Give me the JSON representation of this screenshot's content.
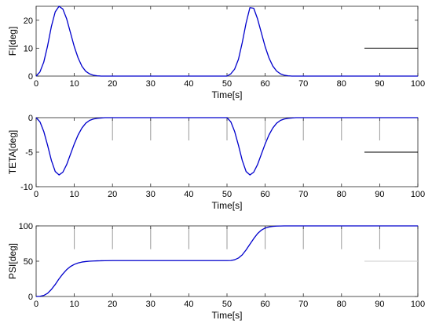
{
  "chart_data": [
    {
      "type": "line",
      "xlabel": "Time[s]",
      "ylabel": "FI[deg]",
      "xlim": [
        0,
        100
      ],
      "ylim": [
        0,
        25
      ],
      "xticks": [
        0,
        10,
        20,
        30,
        40,
        50,
        60,
        70,
        80,
        90,
        100
      ],
      "yticks": [
        0,
        10,
        20
      ],
      "grid": false,
      "series": [
        {
          "color": "#0000cc",
          "x": [
            0,
            1,
            2,
            3,
            4,
            5,
            6,
            7,
            8,
            9,
            10,
            11,
            12,
            13,
            14,
            15,
            16,
            17,
            18,
            20,
            25,
            30,
            35,
            40,
            45,
            48,
            49,
            50,
            51,
            52,
            53,
            54,
            55,
            56,
            57,
            58,
            59,
            60,
            61,
            62,
            63,
            64,
            65,
            66,
            67,
            68,
            70,
            80,
            90,
            100
          ],
          "y": [
            0,
            1.5,
            5.0,
            10.8,
            17.8,
            23.0,
            25.0,
            24.0,
            20.5,
            15.5,
            10.5,
            6.5,
            3.5,
            1.7,
            0.8,
            0.3,
            0.1,
            0,
            0,
            0,
            0,
            0,
            0,
            0,
            0,
            0,
            0,
            0,
            0.8,
            2.5,
            6.0,
            12.0,
            19.0,
            24.5,
            24.3,
            20.5,
            15.5,
            10.5,
            6.5,
            3.6,
            1.8,
            0.8,
            0.3,
            0.1,
            0,
            0,
            0,
            0,
            0,
            0
          ]
        },
        {
          "color": "#000000",
          "x": [
            86,
            100
          ],
          "y": [
            10,
            10
          ]
        }
      ]
    },
    {
      "type": "line",
      "xlabel": "Time[s]",
      "ylabel": "TETA[deg]",
      "xlim": [
        0,
        100
      ],
      "ylim": [
        -10,
        0
      ],
      "xticks": [
        0,
        10,
        20,
        30,
        40,
        50,
        60,
        70,
        80,
        90,
        100
      ],
      "yticks": [
        -10,
        -5,
        0
      ],
      "grid": false,
      "series": [
        {
          "color": "#0000cc",
          "x": [
            0,
            1,
            2,
            3,
            4,
            5,
            6,
            7,
            8,
            9,
            10,
            11,
            12,
            13,
            14,
            15,
            16,
            18,
            20,
            30,
            40,
            49,
            50,
            51,
            52,
            53,
            54,
            55,
            56,
            57,
            58,
            59,
            60,
            61,
            62,
            63,
            64,
            65,
            66,
            68,
            70,
            80,
            90,
            100
          ],
          "y": [
            0,
            -0.6,
            -2.0,
            -4.0,
            -6.2,
            -7.8,
            -8.3,
            -7.9,
            -6.8,
            -5.3,
            -3.8,
            -2.5,
            -1.5,
            -0.8,
            -0.4,
            -0.2,
            -0.1,
            0,
            0,
            0,
            0,
            0,
            0,
            -0.6,
            -2.0,
            -4.0,
            -6.2,
            -7.8,
            -8.3,
            -7.9,
            -6.8,
            -5.3,
            -3.8,
            -2.5,
            -1.5,
            -0.8,
            -0.4,
            -0.2,
            -0.1,
            0,
            0,
            0,
            0,
            0
          ]
        },
        {
          "color": "#000000",
          "x": [
            86,
            100
          ],
          "y": [
            -5,
            -5
          ]
        }
      ]
    },
    {
      "type": "line",
      "xlabel": "Time[s]",
      "ylabel": "PSI[deg]",
      "xlim": [
        0,
        100
      ],
      "ylim": [
        0,
        100
      ],
      "xticks": [
        0,
        10,
        20,
        30,
        40,
        50,
        60,
        70,
        80,
        90,
        100
      ],
      "yticks": [
        0,
        50,
        100
      ],
      "grid": false,
      "series": [
        {
          "color": "#0000cc",
          "x": [
            0,
            1,
            2,
            3,
            4,
            5,
            6,
            7,
            8,
            9,
            10,
            11,
            12,
            13,
            14,
            15,
            16,
            17,
            18,
            20,
            25,
            30,
            35,
            40,
            45,
            50,
            51,
            52,
            53,
            54,
            55,
            56,
            57,
            58,
            59,
            60,
            61,
            62,
            63,
            64,
            65,
            66,
            68,
            70,
            80,
            90,
            100
          ],
          "y": [
            0,
            0.3,
            1.5,
            4.5,
            10,
            17,
            25,
            32,
            38,
            42.5,
            45.5,
            47.5,
            48.8,
            49.5,
            50,
            50.3,
            50.5,
            50.6,
            50.7,
            50.8,
            50.8,
            50.8,
            50.8,
            50.8,
            50.8,
            50.8,
            51,
            52,
            54.5,
            59,
            66,
            74,
            82,
            89,
            94,
            97,
            98.5,
            99.3,
            99.7,
            99.9,
            100,
            100,
            100,
            100,
            100,
            100,
            100
          ]
        },
        {
          "color": "#cccccc",
          "x": [
            86,
            100
          ],
          "y": [
            50,
            50
          ]
        }
      ]
    }
  ]
}
